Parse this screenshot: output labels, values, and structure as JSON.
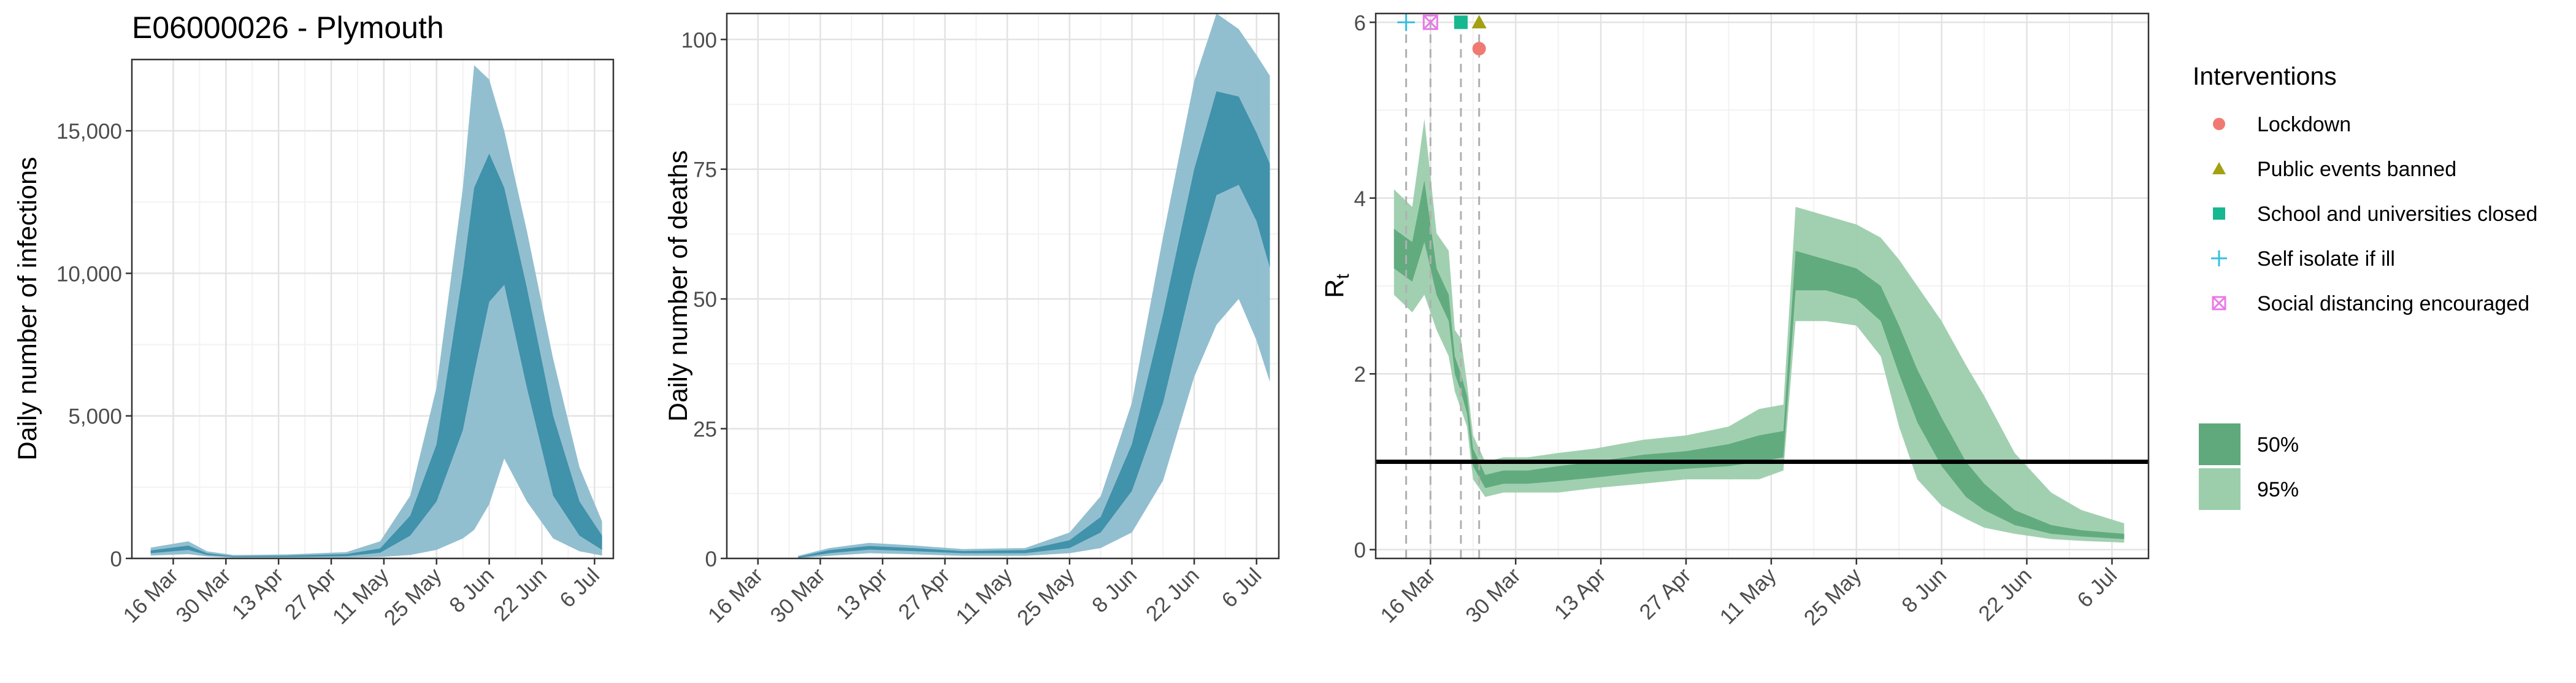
{
  "title": "E06000026 - Plymouth",
  "colors": {
    "band95_blue": "#8cbcce",
    "band50_blue": "#3d8fa9",
    "line_blue": "#3d8fa9",
    "band95_green": "#9cceac",
    "band50_green": "#5fa97c",
    "lockdown": "#f07a72",
    "public_events": "#a3a012",
    "school": "#17b890",
    "self_isolate": "#36bfe0",
    "social_distancing": "#e87ae8",
    "reference_line": "#000000"
  },
  "chart_data": [
    {
      "type": "area",
      "panel": "infections",
      "ylabel": "Daily number of infections",
      "ylim": [
        0,
        17500
      ],
      "yticks": [
        0,
        5000,
        10000,
        15000
      ],
      "ytick_labels": [
        "0",
        "5,000",
        "10,000",
        "15,000"
      ],
      "xlim": [
        "2020-03-05",
        "2020-07-11"
      ],
      "xticks": [
        "2020-03-16",
        "2020-03-30",
        "2020-04-13",
        "2020-04-27",
        "2020-05-11",
        "2020-05-25",
        "2020-06-08",
        "2020-06-22",
        "2020-07-06"
      ],
      "xtick_labels": [
        "16 Mar",
        "30 Mar",
        "13 Apr",
        "27 Apr",
        "11 May",
        "25 May",
        "8 Jun",
        "22 Jun",
        "6 Jul"
      ],
      "series": [
        {
          "band": "95%",
          "points": [
            [
              "2020-03-10",
              100,
              380
            ],
            [
              "2020-03-20",
              150,
              600
            ],
            [
              "2020-03-25",
              70,
              250
            ],
            [
              "2020-04-01",
              30,
              120
            ],
            [
              "2020-04-15",
              30,
              140
            ],
            [
              "2020-05-01",
              30,
              220
            ],
            [
              "2020-05-10",
              50,
              600
            ],
            [
              "2020-05-18",
              120,
              2200
            ],
            [
              "2020-05-25",
              300,
              6000
            ],
            [
              "2020-06-01",
              700,
              13000
            ],
            [
              "2020-06-04",
              1000,
              17300
            ],
            [
              "2020-06-08",
              1900,
              16800
            ],
            [
              "2020-06-12",
              3500,
              15000
            ],
            [
              "2020-06-18",
              2000,
              11500
            ],
            [
              "2020-06-25",
              700,
              7000
            ],
            [
              "2020-07-02",
              250,
              3200
            ],
            [
              "2020-07-08",
              100,
              1300
            ]
          ]
        },
        {
          "band": "50%",
          "points": [
            [
              "2020-03-10",
              180,
              280
            ],
            [
              "2020-03-20",
              300,
              450
            ],
            [
              "2020-03-25",
              120,
              180
            ],
            [
              "2020-04-01",
              50,
              80
            ],
            [
              "2020-04-15",
              50,
              100
            ],
            [
              "2020-05-01",
              80,
              150
            ],
            [
              "2020-05-10",
              200,
              350
            ],
            [
              "2020-05-18",
              800,
              1500
            ],
            [
              "2020-05-25",
              2000,
              4000
            ],
            [
              "2020-06-01",
              4500,
              10000
            ],
            [
              "2020-06-04",
              6500,
              13000
            ],
            [
              "2020-06-08",
              9000,
              14200
            ],
            [
              "2020-06-12",
              9600,
              13000
            ],
            [
              "2020-06-18",
              6000,
              9500
            ],
            [
              "2020-06-25",
              2200,
              5000
            ],
            [
              "2020-07-02",
              800,
              2000
            ],
            [
              "2020-07-08",
              300,
              800
            ]
          ]
        }
      ]
    },
    {
      "type": "area",
      "panel": "deaths",
      "ylabel": "Daily number of deaths",
      "ylim": [
        0,
        105
      ],
      "yticks": [
        0,
        25,
        50,
        75,
        100
      ],
      "ytick_labels": [
        "0",
        "25",
        "50",
        "75",
        "100"
      ],
      "xlim": [
        "2020-03-09",
        "2020-07-11"
      ],
      "xticks": [
        "2020-03-16",
        "2020-03-30",
        "2020-04-13",
        "2020-04-27",
        "2020-05-11",
        "2020-05-25",
        "2020-06-08",
        "2020-06-22",
        "2020-07-06"
      ],
      "xtick_labels": [
        "16 Mar",
        "30 Mar",
        "13 Apr",
        "27 Apr",
        "11 May",
        "25 May",
        "8 Jun",
        "22 Jun",
        "6 Jul"
      ],
      "series": [
        {
          "band": "95%",
          "points": [
            [
              "2020-03-25",
              0,
              0.5
            ],
            [
              "2020-04-01",
              0.5,
              2
            ],
            [
              "2020-04-10",
              1,
              3
            ],
            [
              "2020-04-20",
              0.8,
              2.5
            ],
            [
              "2020-05-01",
              0.5,
              1.8
            ],
            [
              "2020-05-15",
              0.5,
              2
            ],
            [
              "2020-05-25",
              1,
              5
            ],
            [
              "2020-06-01",
              2,
              12
            ],
            [
              "2020-06-08",
              5,
              30
            ],
            [
              "2020-06-15",
              15,
              62
            ],
            [
              "2020-06-22",
              35,
              92
            ],
            [
              "2020-06-27",
              45,
              105
            ],
            [
              "2020-07-02",
              50,
              102
            ],
            [
              "2020-07-06",
              42,
              97
            ],
            [
              "2020-07-09",
              34,
              93
            ]
          ]
        },
        {
          "band": "50%",
          "points": [
            [
              "2020-03-25",
              0.1,
              0.3
            ],
            [
              "2020-04-01",
              1,
              1.6
            ],
            [
              "2020-04-10",
              1.7,
              2.4
            ],
            [
              "2020-04-20",
              1.4,
              2
            ],
            [
              "2020-05-01",
              1,
              1.4
            ],
            [
              "2020-05-15",
              1,
              1.6
            ],
            [
              "2020-05-25",
              2,
              3.5
            ],
            [
              "2020-06-01",
              5,
              8
            ],
            [
              "2020-06-08",
              13,
              22
            ],
            [
              "2020-06-15",
              30,
              47
            ],
            [
              "2020-06-22",
              55,
              75
            ],
            [
              "2020-06-27",
              70,
              90
            ],
            [
              "2020-07-02",
              72,
              89
            ],
            [
              "2020-07-06",
              65,
              82
            ],
            [
              "2020-07-09",
              56,
              76
            ]
          ]
        }
      ]
    },
    {
      "type": "area",
      "panel": "Rt",
      "ylabel": "R",
      "ylabel_subscript": "t",
      "ylim": [
        -0.1,
        6.1
      ],
      "yticks": [
        0,
        2,
        4,
        6
      ],
      "ytick_labels": [
        "0",
        "2",
        "4",
        "6"
      ],
      "xlim": [
        "2020-03-07",
        "2020-07-12"
      ],
      "xticks": [
        "2020-03-16",
        "2020-03-30",
        "2020-04-13",
        "2020-04-27",
        "2020-05-11",
        "2020-05-25",
        "2020-06-08",
        "2020-06-22",
        "2020-07-06"
      ],
      "xtick_labels": [
        "16 Mar",
        "30 Mar",
        "13 Apr",
        "27 Apr",
        "11 May",
        "25 May",
        "8 Jun",
        "22 Jun",
        "6 Jul"
      ],
      "reference_line": 1,
      "series": [
        {
          "band": "95%",
          "points": [
            [
              "2020-03-10",
              2.9,
              4.1
            ],
            [
              "2020-03-13",
              2.7,
              3.9
            ],
            [
              "2020-03-15",
              2.9,
              4.9
            ],
            [
              "2020-03-17",
              2.5,
              3.6
            ],
            [
              "2020-03-19",
              2.2,
              3.4
            ],
            [
              "2020-03-20",
              1.8,
              2.5
            ],
            [
              "2020-03-21",
              1.6,
              2.4
            ],
            [
              "2020-03-22",
              1.4,
              1.9
            ],
            [
              "2020-03-23",
              0.8,
              1.3
            ],
            [
              "2020-03-25",
              0.6,
              1.0
            ],
            [
              "2020-03-28",
              0.65,
              1.05
            ],
            [
              "2020-04-01",
              0.65,
              1.05
            ],
            [
              "2020-04-06",
              0.65,
              1.1
            ],
            [
              "2020-04-12",
              0.7,
              1.15
            ],
            [
              "2020-04-20",
              0.75,
              1.25
            ],
            [
              "2020-04-27",
              0.8,
              1.3
            ],
            [
              "2020-05-04",
              0.8,
              1.4
            ],
            [
              "2020-05-09",
              0.8,
              1.6
            ],
            [
              "2020-05-13",
              0.9,
              1.65
            ],
            [
              "2020-05-15",
              2.6,
              3.9
            ],
            [
              "2020-05-20",
              2.6,
              3.8
            ],
            [
              "2020-05-25",
              2.55,
              3.7
            ],
            [
              "2020-05-29",
              2.2,
              3.55
            ],
            [
              "2020-06-01",
              1.4,
              3.3
            ],
            [
              "2020-06-04",
              0.8,
              3.0
            ],
            [
              "2020-06-08",
              0.5,
              2.6
            ],
            [
              "2020-06-12",
              0.35,
              2.1
            ],
            [
              "2020-06-15",
              0.25,
              1.75
            ],
            [
              "2020-06-20",
              0.18,
              1.1
            ],
            [
              "2020-06-26",
              0.12,
              0.65
            ],
            [
              "2020-07-01",
              0.1,
              0.45
            ],
            [
              "2020-07-08",
              0.08,
              0.3
            ]
          ]
        },
        {
          "band": "50%",
          "points": [
            [
              "2020-03-10",
              3.2,
              3.65
            ],
            [
              "2020-03-13",
              3.05,
              3.5
            ],
            [
              "2020-03-15",
              3.5,
              4.2
            ],
            [
              "2020-03-17",
              2.9,
              3.2
            ],
            [
              "2020-03-19",
              2.6,
              2.9
            ],
            [
              "2020-03-20",
              2.0,
              2.2
            ],
            [
              "2020-03-21",
              1.8,
              2.0
            ],
            [
              "2020-03-22",
              1.55,
              1.75
            ],
            [
              "2020-03-23",
              0.95,
              1.15
            ],
            [
              "2020-03-25",
              0.7,
              0.85
            ],
            [
              "2020-03-28",
              0.75,
              0.9
            ],
            [
              "2020-04-01",
              0.75,
              0.9
            ],
            [
              "2020-04-06",
              0.78,
              0.95
            ],
            [
              "2020-04-12",
              0.82,
              1.0
            ],
            [
              "2020-04-20",
              0.88,
              1.08
            ],
            [
              "2020-04-27",
              0.92,
              1.12
            ],
            [
              "2020-05-04",
              0.95,
              1.2
            ],
            [
              "2020-05-09",
              1.0,
              1.3
            ],
            [
              "2020-05-13",
              1.05,
              1.35
            ],
            [
              "2020-05-15",
              2.95,
              3.4
            ],
            [
              "2020-05-20",
              2.95,
              3.3
            ],
            [
              "2020-05-25",
              2.85,
              3.2
            ],
            [
              "2020-05-29",
              2.6,
              3.0
            ],
            [
              "2020-06-01",
              2.0,
              2.55
            ],
            [
              "2020-06-04",
              1.45,
              2.05
            ],
            [
              "2020-06-08",
              0.95,
              1.5
            ],
            [
              "2020-06-12",
              0.6,
              1.0
            ],
            [
              "2020-06-15",
              0.45,
              0.75
            ],
            [
              "2020-06-20",
              0.28,
              0.45
            ],
            [
              "2020-06-26",
              0.18,
              0.28
            ],
            [
              "2020-07-01",
              0.15,
              0.22
            ],
            [
              "2020-07-08",
              0.12,
              0.18
            ]
          ]
        }
      ],
      "interventions": [
        {
          "name": "Self isolate if ill",
          "date": "2020-03-12",
          "y": 6.0,
          "shape": "plus"
        },
        {
          "name": "Social distancing encouraged",
          "date": "2020-03-16",
          "y": 6.0,
          "shape": "boxcross"
        },
        {
          "name": "School and universities closed",
          "date": "2020-03-21",
          "y": 6.0,
          "shape": "square"
        },
        {
          "name": "Public events banned",
          "date": "2020-03-24",
          "y": 6.0,
          "shape": "triangle"
        },
        {
          "name": "Lockdown",
          "date": "2020-03-24",
          "y": 5.7,
          "shape": "circle"
        }
      ]
    }
  ],
  "legend": {
    "interventions_title": "Interventions",
    "interventions": [
      {
        "label": "Lockdown",
        "shape": "circle",
        "color_key": "lockdown"
      },
      {
        "label": "Public events banned",
        "shape": "triangle",
        "color_key": "public_events"
      },
      {
        "label": "School and universities closed",
        "shape": "square",
        "color_key": "school"
      },
      {
        "label": "Self isolate if ill",
        "shape": "plus",
        "color_key": "self_isolate"
      },
      {
        "label": "Social distancing encouraged",
        "shape": "boxcross",
        "color_key": "social_distancing"
      }
    ],
    "bands": [
      {
        "label": "50%",
        "color_key": "band50_green"
      },
      {
        "label": "95%",
        "color_key": "band95_green"
      }
    ]
  }
}
